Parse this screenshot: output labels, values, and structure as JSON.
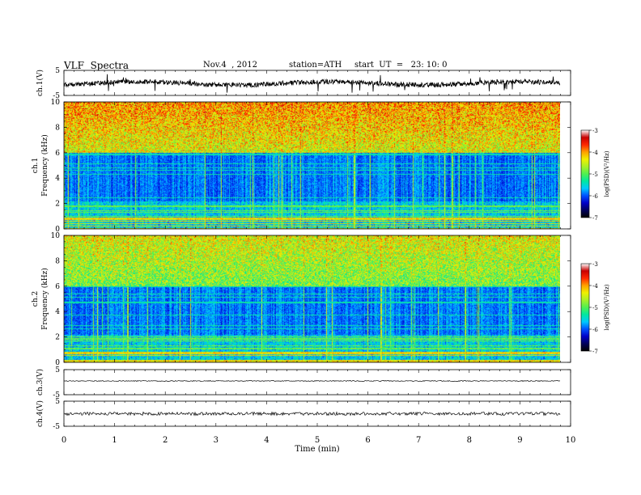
{
  "header": {
    "title": "VLF  Spectra",
    "date": "Nov.4  , 2012",
    "station": "station=ATH",
    "start": "start  UT  =   23: 10: 0"
  },
  "chart_data": [
    {
      "type": "line",
      "panel": "ch1-waveform",
      "ylabel": "ch.1(V)",
      "ylim": [
        -5,
        5
      ],
      "yticks": [
        "5",
        "-5"
      ],
      "xlim": [
        0,
        10
      ],
      "data_extent_min": 9.8,
      "series": [
        {
          "values_level": 0,
          "description_hidden": true
        }
      ]
    },
    {
      "type": "heatmap",
      "panel": "ch1-spectrogram",
      "ylabel": "Frequency  (kHz)",
      "channel_label": "ch.1",
      "ylim": [
        0,
        10
      ],
      "yticks": [
        "0",
        "2",
        "4",
        "6",
        "8",
        "10"
      ],
      "xlim": [
        0,
        10
      ],
      "colorbar": {
        "label": "log(PSD)(V²/Hz)",
        "range": [
          -7,
          -3
        ],
        "ticks": [
          "-3",
          "-4",
          "-5",
          "-6",
          "-7"
        ]
      }
    },
    {
      "type": "heatmap",
      "panel": "ch2-spectrogram",
      "ylabel": "Frequency  (kHz)",
      "channel_label": "ch.2",
      "ylim": [
        0,
        10
      ],
      "yticks": [
        "0",
        "2",
        "4",
        "6",
        "8",
        "10"
      ],
      "xlim": [
        0,
        10
      ],
      "colorbar": {
        "label": "log(PSD)(V²/Hz)",
        "range": [
          -7,
          -3
        ],
        "ticks": [
          "-3",
          "-4",
          "-5",
          "-6",
          "-7"
        ]
      }
    },
    {
      "type": "line",
      "panel": "ch3-waveform",
      "ylabel": "ch.3(V)",
      "ylim": [
        -5,
        5
      ],
      "yticks": [
        "5",
        "-5"
      ],
      "xlim": [
        0,
        10
      ]
    },
    {
      "type": "line",
      "panel": "ch4-waveform",
      "ylabel": "ch.4(V)",
      "ylim": [
        -5,
        5
      ],
      "yticks": [
        "5",
        "-5"
      ],
      "xlim": [
        0,
        10
      ]
    }
  ],
  "xaxis": {
    "label": "Time  (min)",
    "ticks": [
      "0",
      "1",
      "2",
      "3",
      "4",
      "5",
      "6",
      "7",
      "8",
      "9",
      "10"
    ]
  },
  "colors": {
    "colormap": [
      "#000000",
      "#00005a",
      "#0000c8",
      "#0050ff",
      "#00c8ff",
      "#00e8a0",
      "#50f050",
      "#a8f028",
      "#f0f000",
      "#ffa000",
      "#ff2800",
      "#c80000",
      "#ffffff"
    ]
  }
}
